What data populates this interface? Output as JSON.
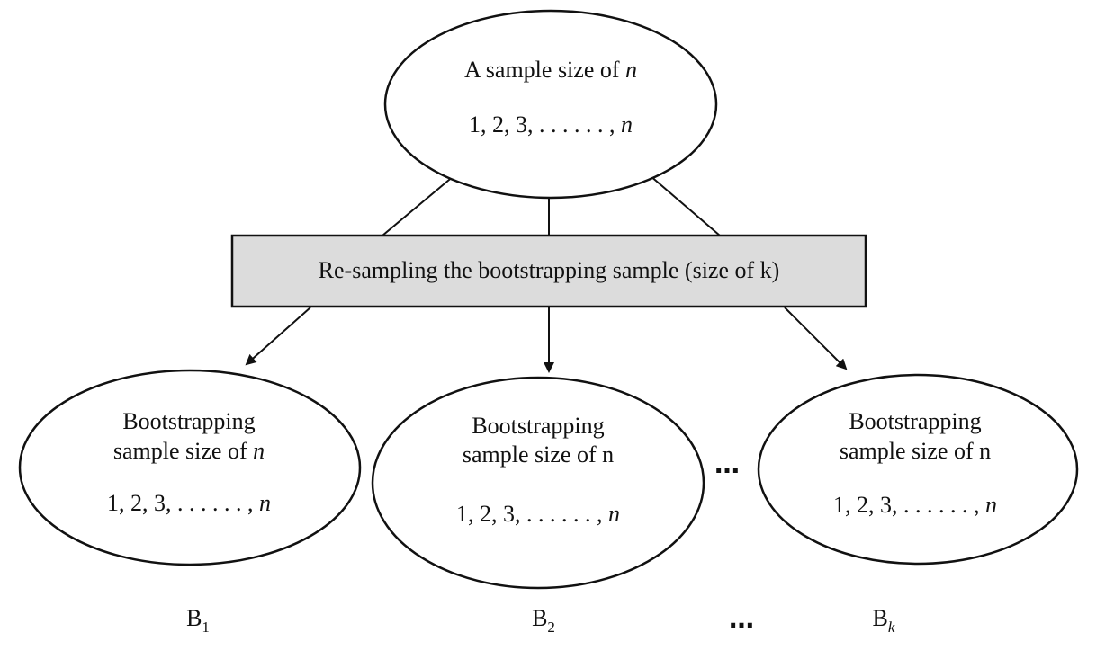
{
  "root": {
    "title_prefix": "A sample size of ",
    "title_var": "n",
    "sequence_prefix": "1, 2, 3, . . . . . . , ",
    "sequence_var": "n"
  },
  "process_box": {
    "label": "Re-sampling the bootstrapping sample (size of k)",
    "fill": "#dcdcdc"
  },
  "samples": [
    {
      "line1": "Bootstrapping",
      "line2_prefix": "sample size of ",
      "line2_var": "n",
      "sequence_prefix": "1, 2, 3, . . . . . . , ",
      "sequence_var": "n",
      "label_base": "B",
      "label_sub": "1"
    },
    {
      "line1": "Bootstrapping",
      "line2_prefix": "sample size of n",
      "line2_var": "",
      "sequence_prefix": "1, 2, 3, . . . . . . , ",
      "sequence_var": "n",
      "label_base": "B",
      "label_sub": "2"
    },
    {
      "line1": "Bootstrapping",
      "line2_prefix": "sample size of n",
      "line2_var": "",
      "sequence_prefix": "1, 2, 3, . . . . . . , ",
      "sequence_var": "n",
      "label_base": "B",
      "label_sub": "k"
    }
  ],
  "ellipsis": "…"
}
